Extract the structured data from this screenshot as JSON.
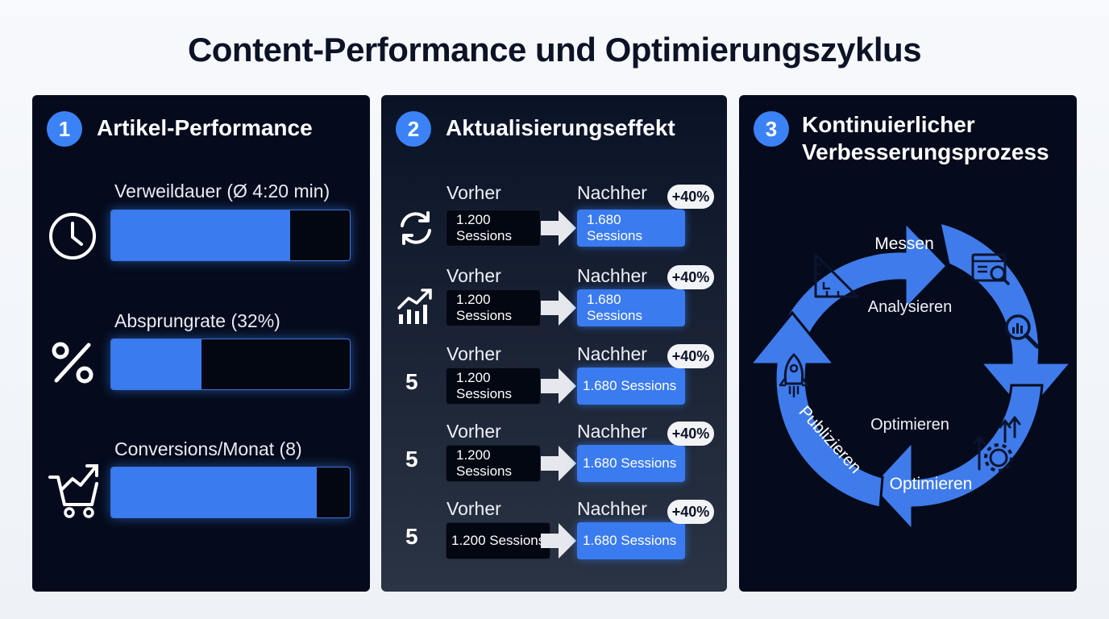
{
  "title": "Content-Performance und Optimierungszyklus",
  "colors": {
    "accent": "#3b7bf0",
    "panel": "#050b1c",
    "pill": "#f1f3f7"
  },
  "panels": [
    {
      "number": "1",
      "title": "Artikel-Performance",
      "metrics": [
        {
          "label": "Verweildauer (Ø 4:20 min)",
          "icon": "clock-icon",
          "fill": 0.75
        },
        {
          "label": "Absprungrate (32%)",
          "icon": "percent-icon",
          "fill": 0.38
        },
        {
          "label": "Conversions/Monat (8)",
          "icon": "cart-trend-icon",
          "fill": 0.86
        }
      ]
    },
    {
      "number": "2",
      "title": "Aktualisierungseffekt",
      "rows": [
        {
          "marker": "",
          "icon": "refresh-icon",
          "before_label": "Vorher",
          "before_value": "1.200",
          "before_unit": "Sessions",
          "after_label": "Nachher",
          "after_value": "1.680",
          "after_unit": "Sessions",
          "change": "+40%"
        },
        {
          "marker": "",
          "icon": "growth-chart-icon",
          "before_label": "Vorher",
          "before_value": "1.200",
          "before_unit": "Sessions",
          "after_label": "Nachher",
          "after_value": "1.680",
          "after_unit": "Sessions",
          "change": "+40%"
        },
        {
          "marker": "5",
          "icon": "",
          "before_label": "Vorher",
          "before_value": "1.200",
          "before_unit": "Sessions",
          "after_label": "Nachher",
          "after_value": "1.680 Sessions",
          "after_unit": "",
          "change": "+40%"
        },
        {
          "marker": "5",
          "icon": "",
          "before_label": "Vorher",
          "before_value": "1.200",
          "before_unit": "Sessions",
          "after_label": "Nachher",
          "after_value": "1.680 Sessions",
          "after_unit": "",
          "change": "+40%"
        },
        {
          "marker": "5",
          "icon": "",
          "before_label": "Vorher",
          "before_value": "1.200 Sessions",
          "before_unit": "",
          "after_label": "Nachher",
          "after_value": "1.680 Sessions",
          "after_unit": "",
          "change": "+40%"
        }
      ]
    },
    {
      "number": "3",
      "title_line1": "Kontinuierlicher",
      "title_line2": "Verbesserungsprozess",
      "cycle": {
        "outer": [
          "Messen",
          "Publizieren",
          "Optimieren"
        ],
        "inner": [
          "Analysieren",
          "Optimieren"
        ],
        "icons": [
          "ruler-icon",
          "dashboard-icon",
          "magnifier-chart-icon",
          "rocket-icon",
          "gear-arrows-icon"
        ]
      }
    }
  ]
}
